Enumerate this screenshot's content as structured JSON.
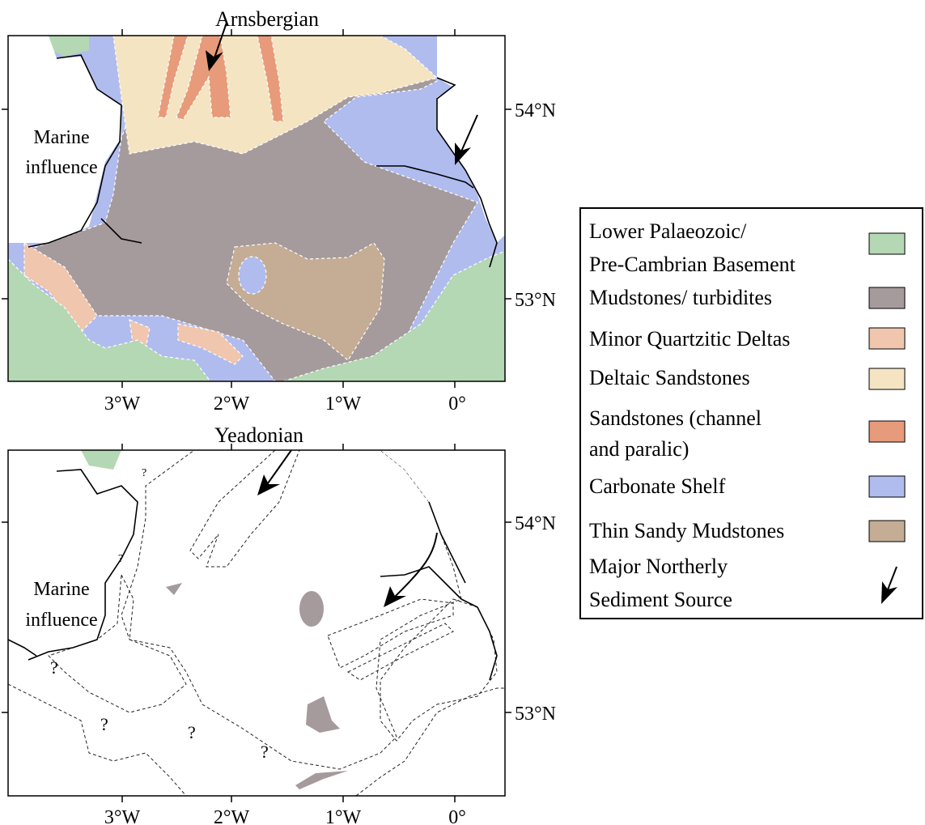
{
  "colors": {
    "basement": "#b4d7b4",
    "mudstone": "#a59a9c",
    "quartzitic": "#f0c6ae",
    "deltaic": "#f4e4c2",
    "channel": "#e79b7a",
    "carbonate": "#b0bcee",
    "sandy_mud": "#c4ad94",
    "land": "#ffffff"
  },
  "maps": [
    {
      "title": "Arnsbergian",
      "marine_label": [
        "Marine",
        "influence"
      ],
      "x_ticks": [
        "3°W",
        "2°W",
        "1°W",
        "0°"
      ],
      "y_ticks": [
        "54°N",
        "53°N"
      ]
    },
    {
      "title": "Yeadonian",
      "marine_label": [
        "Marine",
        "influence"
      ],
      "x_ticks": [
        "3°W",
        "2°W",
        "1°W",
        "0°"
      ],
      "y_ticks": [
        "54°N",
        "53°N"
      ],
      "question_marks": [
        "?",
        "?",
        "?",
        "?",
        "?",
        "?"
      ]
    }
  ],
  "legend": {
    "items": [
      {
        "lines": [
          "Lower Palaeozoic/",
          "Pre-Cambrian Basement"
        ],
        "color_key": "basement"
      },
      {
        "lines": [
          "Mudstones/ turbidites"
        ],
        "color_key": "mudstone"
      },
      {
        "lines": [
          "Minor Quartzitic Deltas"
        ],
        "color_key": "quartzitic"
      },
      {
        "lines": [
          "Deltaic Sandstones"
        ],
        "color_key": "deltaic"
      },
      {
        "lines": [
          "Sandstones (channel",
          "and paralic)"
        ],
        "color_key": "channel"
      },
      {
        "lines": [
          "Carbonate Shelf"
        ],
        "color_key": "carbonate"
      },
      {
        "lines": [
          "Thin Sandy Mudstones"
        ],
        "color_key": "sandy_mud"
      },
      {
        "lines": [
          "Major Northerly",
          "Sediment Source"
        ],
        "symbol": "arrow-icon"
      }
    ]
  }
}
